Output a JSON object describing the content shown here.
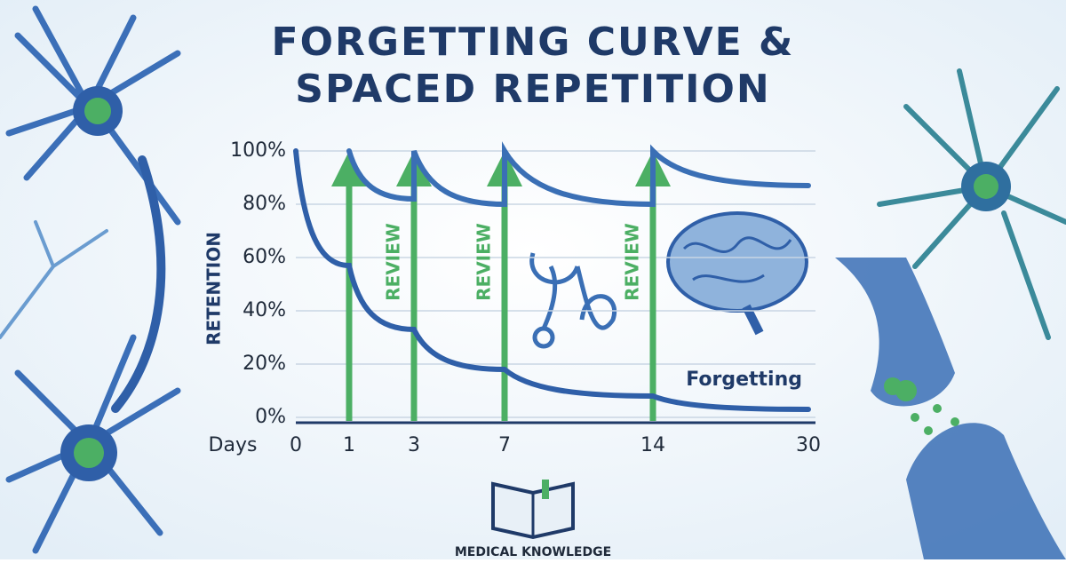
{
  "chart_data": {
    "type": "line",
    "title": [
      "FORGETTING CURVE &",
      "SPACED REPETITION"
    ],
    "ylabel": "RETENTION",
    "xlabel": "Days",
    "xticks": [
      0,
      1,
      3,
      7,
      14,
      30
    ],
    "ylim": [
      0,
      100
    ],
    "yticks": [
      {
        "value": 0,
        "label": "0%"
      },
      {
        "value": 20,
        "label": "20%"
      },
      {
        "value": 40,
        "label": "40%"
      },
      {
        "value": 60,
        "label": "60%"
      },
      {
        "value": 80,
        "label": "80%"
      },
      {
        "value": 100,
        "label": "100%"
      }
    ],
    "grid": true,
    "series": [
      {
        "name": "Forgetting",
        "color": "#2f5fa8",
        "x": [
          0,
          1,
          3,
          7,
          14,
          30
        ],
        "values": [
          100,
          57,
          33,
          18,
          8,
          3
        ]
      },
      {
        "color": "#3a6fb5",
        "x": [
          1,
          3,
          3,
          7,
          7,
          14,
          14,
          30
        ],
        "values": [
          100,
          82,
          100,
          80,
          100,
          80,
          100,
          87
        ]
      }
    ],
    "reviews": {
      "color": "#4caf64",
      "days": [
        1,
        3,
        7,
        14
      ],
      "labels": [
        "REVIEW",
        "REVIEW",
        "REVIEW"
      ]
    },
    "footer": "MEDICAL KNOWLEDGE"
  }
}
